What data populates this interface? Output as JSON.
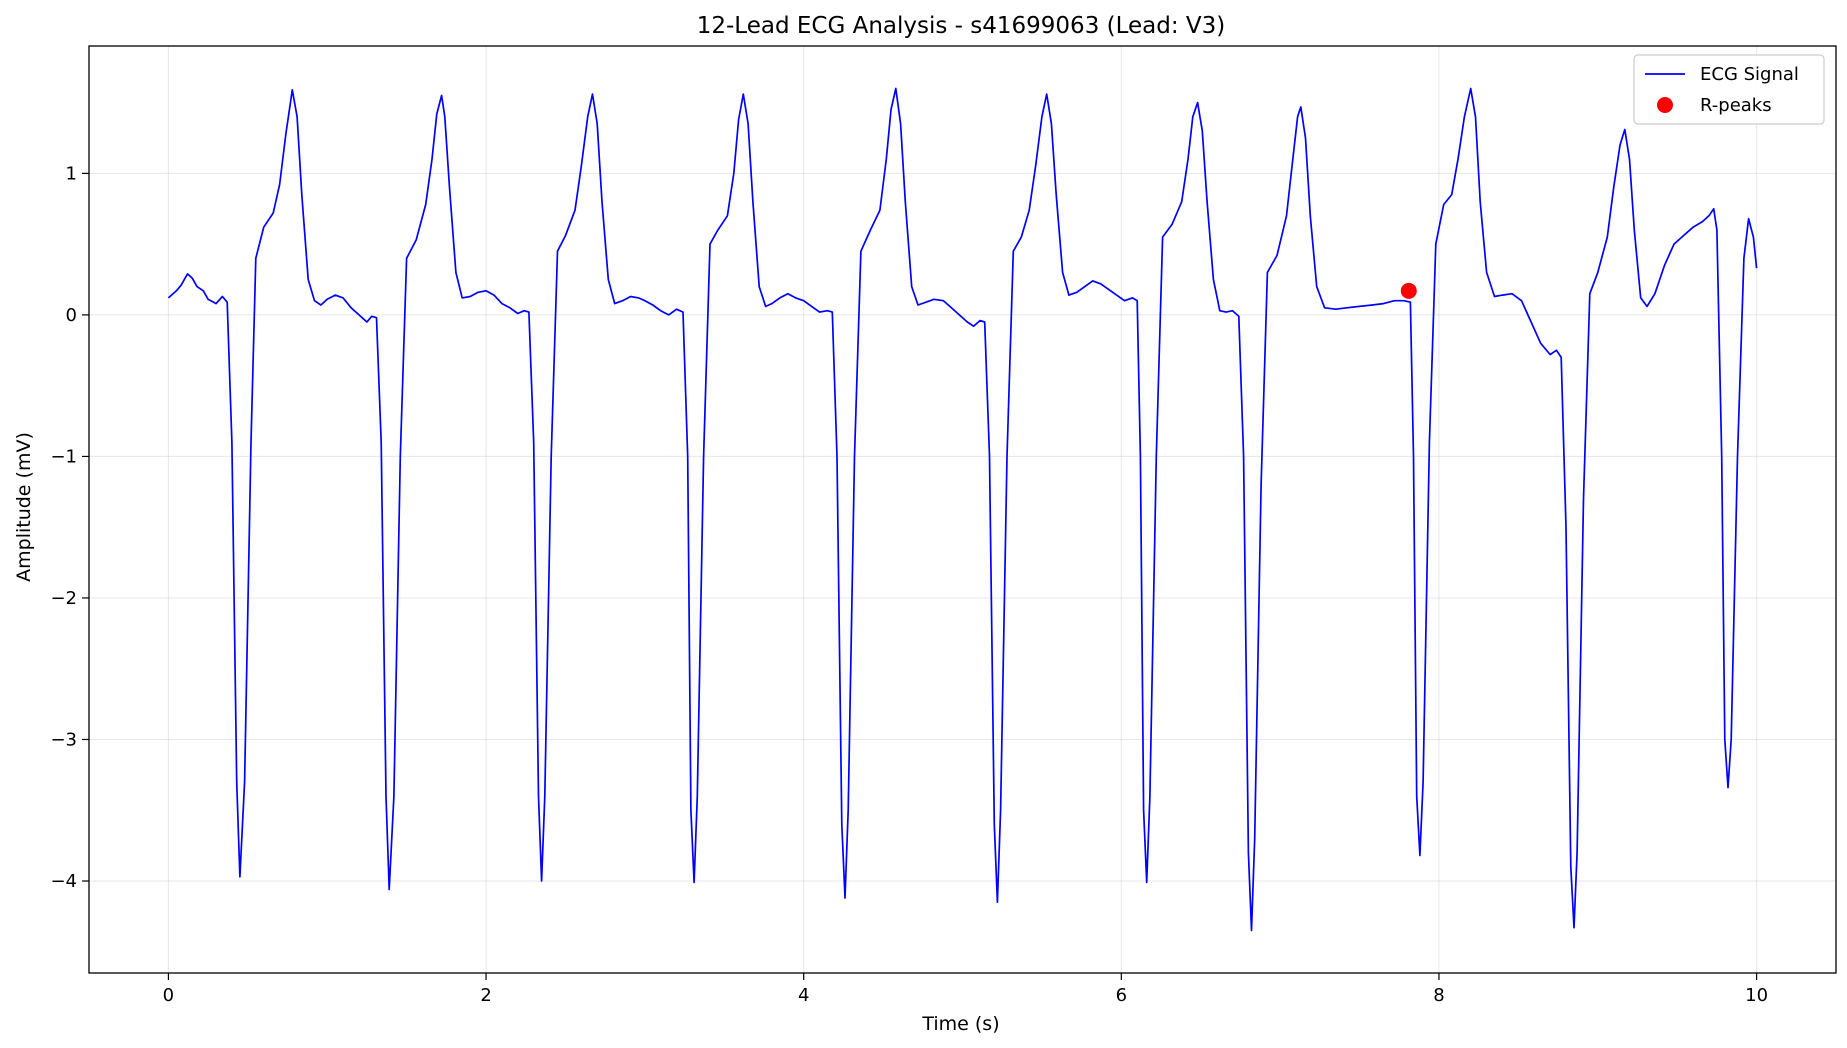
{
  "chart_data": {
    "type": "line",
    "title": "12-Lead ECG Analysis - s41699063 (Lead: V3)",
    "xlabel": "Time (s)",
    "ylabel": "Amplitude (mV)",
    "xlim": [
      -0.5,
      10.5
    ],
    "ylim": [
      -4.65,
      1.9
    ],
    "xticks": [
      0,
      2,
      4,
      6,
      8,
      10
    ],
    "yticks": [
      1,
      0,
      -1,
      -2,
      -3,
      -4
    ],
    "xtick_labels": [
      "0",
      "2",
      "4",
      "6",
      "8",
      "10"
    ],
    "ytick_labels": [
      "1",
      "0",
      "−1",
      "−2",
      "−3",
      "−4"
    ],
    "grid": true,
    "legend_position": "top-right",
    "series": [
      {
        "name": "ECG Signal",
        "color": "#0000ff",
        "style": "line",
        "points": [
          [
            0.0,
            0.12
          ],
          [
            0.05,
            0.17
          ],
          [
            0.08,
            0.21
          ],
          [
            0.12,
            0.29
          ],
          [
            0.15,
            0.26
          ],
          [
            0.18,
            0.2
          ],
          [
            0.22,
            0.17
          ],
          [
            0.25,
            0.11
          ],
          [
            0.3,
            0.08
          ],
          [
            0.34,
            0.13
          ],
          [
            0.37,
            0.09
          ],
          [
            0.4,
            -0.9
          ],
          [
            0.43,
            -3.3
          ],
          [
            0.45,
            -3.97
          ],
          [
            0.48,
            -3.3
          ],
          [
            0.52,
            -0.9
          ],
          [
            0.55,
            0.4
          ],
          [
            0.6,
            0.62
          ],
          [
            0.66,
            0.72
          ],
          [
            0.7,
            0.92
          ],
          [
            0.74,
            1.28
          ],
          [
            0.78,
            1.59
          ],
          [
            0.81,
            1.4
          ],
          [
            0.84,
            0.85
          ],
          [
            0.88,
            0.25
          ],
          [
            0.92,
            0.1
          ],
          [
            0.96,
            0.07
          ],
          [
            1.0,
            0.11
          ],
          [
            1.05,
            0.14
          ],
          [
            1.1,
            0.12
          ],
          [
            1.15,
            0.05
          ],
          [
            1.2,
            0.0
          ],
          [
            1.25,
            -0.05
          ],
          [
            1.28,
            -0.01
          ],
          [
            1.31,
            -0.02
          ],
          [
            1.34,
            -0.9
          ],
          [
            1.37,
            -3.4
          ],
          [
            1.39,
            -4.06
          ],
          [
            1.42,
            -3.4
          ],
          [
            1.46,
            -1.0
          ],
          [
            1.5,
            0.4
          ],
          [
            1.56,
            0.53
          ],
          [
            1.62,
            0.78
          ],
          [
            1.66,
            1.1
          ],
          [
            1.69,
            1.42
          ],
          [
            1.72,
            1.55
          ],
          [
            1.74,
            1.4
          ],
          [
            1.77,
            0.9
          ],
          [
            1.81,
            0.3
          ],
          [
            1.85,
            0.12
          ],
          [
            1.9,
            0.13
          ],
          [
            1.95,
            0.16
          ],
          [
            2.0,
            0.17
          ],
          [
            2.05,
            0.14
          ],
          [
            2.1,
            0.08
          ],
          [
            2.15,
            0.05
          ],
          [
            2.2,
            0.01
          ],
          [
            2.24,
            0.03
          ],
          [
            2.27,
            0.02
          ],
          [
            2.3,
            -0.9
          ],
          [
            2.33,
            -3.4
          ],
          [
            2.35,
            -4.0
          ],
          [
            2.37,
            -3.4
          ],
          [
            2.41,
            -1.0
          ],
          [
            2.45,
            0.45
          ],
          [
            2.5,
            0.56
          ],
          [
            2.56,
            0.74
          ],
          [
            2.6,
            1.05
          ],
          [
            2.64,
            1.4
          ],
          [
            2.67,
            1.56
          ],
          [
            2.7,
            1.35
          ],
          [
            2.73,
            0.8
          ],
          [
            2.77,
            0.25
          ],
          [
            2.81,
            0.08
          ],
          [
            2.86,
            0.1
          ],
          [
            2.91,
            0.13
          ],
          [
            2.96,
            0.12
          ],
          [
            3.0,
            0.1
          ],
          [
            3.05,
            0.07
          ],
          [
            3.1,
            0.03
          ],
          [
            3.15,
            0.0
          ],
          [
            3.2,
            0.04
          ],
          [
            3.24,
            0.02
          ],
          [
            3.27,
            -1.0
          ],
          [
            3.29,
            -3.5
          ],
          [
            3.31,
            -4.01
          ],
          [
            3.33,
            -3.4
          ],
          [
            3.37,
            -1.0
          ],
          [
            3.41,
            0.5
          ],
          [
            3.46,
            0.6
          ],
          [
            3.52,
            0.7
          ],
          [
            3.56,
            1.0
          ],
          [
            3.59,
            1.38
          ],
          [
            3.62,
            1.56
          ],
          [
            3.65,
            1.35
          ],
          [
            3.68,
            0.8
          ],
          [
            3.72,
            0.2
          ],
          [
            3.76,
            0.06
          ],
          [
            3.8,
            0.08
          ],
          [
            3.85,
            0.12
          ],
          [
            3.9,
            0.15
          ],
          [
            3.95,
            0.12
          ],
          [
            4.0,
            0.1
          ],
          [
            4.05,
            0.06
          ],
          [
            4.1,
            0.02
          ],
          [
            4.15,
            0.03
          ],
          [
            4.18,
            0.02
          ],
          [
            4.21,
            -1.0
          ],
          [
            4.24,
            -3.6
          ],
          [
            4.26,
            -4.12
          ],
          [
            4.28,
            -3.5
          ],
          [
            4.32,
            -1.0
          ],
          [
            4.36,
            0.45
          ],
          [
            4.42,
            0.6
          ],
          [
            4.48,
            0.74
          ],
          [
            4.52,
            1.1
          ],
          [
            4.55,
            1.45
          ],
          [
            4.58,
            1.6
          ],
          [
            4.61,
            1.35
          ],
          [
            4.64,
            0.8
          ],
          [
            4.68,
            0.2
          ],
          [
            4.72,
            0.07
          ],
          [
            4.77,
            0.09
          ],
          [
            4.82,
            0.11
          ],
          [
            4.88,
            0.1
          ],
          [
            4.93,
            0.05
          ],
          [
            4.98,
            0.0
          ],
          [
            5.03,
            -0.05
          ],
          [
            5.07,
            -0.08
          ],
          [
            5.11,
            -0.04
          ],
          [
            5.14,
            -0.05
          ],
          [
            5.17,
            -1.0
          ],
          [
            5.2,
            -3.6
          ],
          [
            5.22,
            -4.15
          ],
          [
            5.24,
            -3.5
          ],
          [
            5.28,
            -1.0
          ],
          [
            5.32,
            0.45
          ],
          [
            5.37,
            0.55
          ],
          [
            5.42,
            0.74
          ],
          [
            5.46,
            1.05
          ],
          [
            5.5,
            1.4
          ],
          [
            5.53,
            1.56
          ],
          [
            5.56,
            1.35
          ],
          [
            5.59,
            0.85
          ],
          [
            5.63,
            0.3
          ],
          [
            5.67,
            0.14
          ],
          [
            5.72,
            0.16
          ],
          [
            5.77,
            0.2
          ],
          [
            5.82,
            0.24
          ],
          [
            5.87,
            0.22
          ],
          [
            5.92,
            0.18
          ],
          [
            5.97,
            0.14
          ],
          [
            6.02,
            0.1
          ],
          [
            6.07,
            0.12
          ],
          [
            6.1,
            0.1
          ],
          [
            6.12,
            -1.0
          ],
          [
            6.14,
            -3.5
          ],
          [
            6.16,
            -4.01
          ],
          [
            6.18,
            -3.4
          ],
          [
            6.22,
            -1.0
          ],
          [
            6.26,
            0.55
          ],
          [
            6.32,
            0.64
          ],
          [
            6.38,
            0.8
          ],
          [
            6.42,
            1.1
          ],
          [
            6.45,
            1.4
          ],
          [
            6.48,
            1.5
          ],
          [
            6.51,
            1.3
          ],
          [
            6.54,
            0.8
          ],
          [
            6.58,
            0.25
          ],
          [
            6.62,
            0.03
          ],
          [
            6.66,
            0.02
          ],
          [
            6.7,
            0.03
          ],
          [
            6.74,
            -0.01
          ],
          [
            6.77,
            -1.0
          ],
          [
            6.8,
            -3.8
          ],
          [
            6.82,
            -4.35
          ],
          [
            6.84,
            -3.7
          ],
          [
            6.88,
            -1.2
          ],
          [
            6.92,
            0.3
          ],
          [
            6.98,
            0.42
          ],
          [
            7.04,
            0.7
          ],
          [
            7.08,
            1.1
          ],
          [
            7.11,
            1.4
          ],
          [
            7.13,
            1.47
          ],
          [
            7.16,
            1.25
          ],
          [
            7.19,
            0.7
          ],
          [
            7.23,
            0.2
          ],
          [
            7.28,
            0.05
          ],
          [
            7.35,
            0.04
          ],
          [
            7.42,
            0.05
          ],
          [
            7.5,
            0.06
          ],
          [
            7.58,
            0.07
          ],
          [
            7.65,
            0.08
          ],
          [
            7.72,
            0.1
          ],
          [
            7.78,
            0.1
          ],
          [
            7.82,
            0.09
          ],
          [
            7.84,
            -1.0
          ],
          [
            7.86,
            -3.4
          ],
          [
            7.88,
            -3.82
          ],
          [
            7.9,
            -3.3
          ],
          [
            7.94,
            -0.9
          ],
          [
            7.98,
            0.5
          ],
          [
            8.03,
            0.78
          ],
          [
            8.08,
            0.85
          ],
          [
            8.12,
            1.1
          ],
          [
            8.16,
            1.4
          ],
          [
            8.2,
            1.6
          ],
          [
            8.23,
            1.4
          ],
          [
            8.26,
            0.8
          ],
          [
            8.3,
            0.3
          ],
          [
            8.35,
            0.13
          ],
          [
            8.4,
            0.14
          ],
          [
            8.46,
            0.15
          ],
          [
            8.52,
            0.1
          ],
          [
            8.58,
            -0.05
          ],
          [
            8.64,
            -0.2
          ],
          [
            8.7,
            -0.28
          ],
          [
            8.74,
            -0.25
          ],
          [
            8.77,
            -0.3
          ],
          [
            8.8,
            -1.5
          ],
          [
            8.83,
            -3.9
          ],
          [
            8.85,
            -4.33
          ],
          [
            8.87,
            -3.8
          ],
          [
            8.91,
            -1.3
          ],
          [
            8.95,
            0.15
          ],
          [
            9.0,
            0.3
          ],
          [
            9.06,
            0.55
          ],
          [
            9.1,
            0.9
          ],
          [
            9.14,
            1.2
          ],
          [
            9.17,
            1.31
          ],
          [
            9.2,
            1.1
          ],
          [
            9.23,
            0.6
          ],
          [
            9.27,
            0.12
          ],
          [
            9.31,
            0.06
          ],
          [
            9.36,
            0.15
          ],
          [
            9.42,
            0.35
          ],
          [
            9.48,
            0.5
          ],
          [
            9.54,
            0.56
          ],
          [
            9.6,
            0.62
          ],
          [
            9.66,
            0.66
          ],
          [
            9.7,
            0.7
          ],
          [
            9.73,
            0.75
          ],
          [
            9.75,
            0.6
          ],
          [
            9.78,
            -1.0
          ],
          [
            9.8,
            -3.0
          ],
          [
            9.82,
            -3.34
          ],
          [
            9.84,
            -3.0
          ],
          [
            9.88,
            -1.0
          ],
          [
            9.92,
            0.4
          ],
          [
            9.95,
            0.68
          ],
          [
            9.98,
            0.55
          ],
          [
            10.0,
            0.33
          ]
        ]
      },
      {
        "name": "R-peaks",
        "color": "#ff0000",
        "style": "marker",
        "points": [
          [
            7.81,
            0.17
          ]
        ]
      }
    ]
  }
}
